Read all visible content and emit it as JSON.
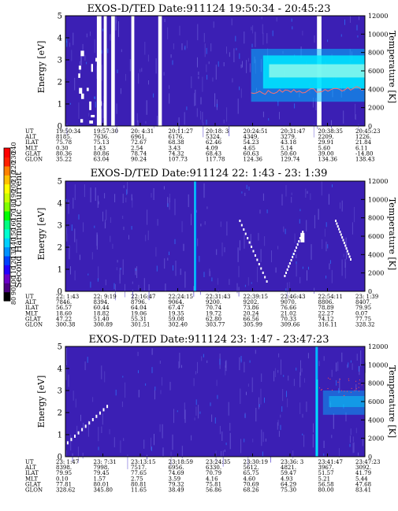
{
  "chart_data": [
    {
      "type": "heatmap",
      "title": "EXOS-D/TED   Date:911124  19:50:34 - 20:45:23",
      "ylabel": "Energy [eV]",
      "y2label": "Temperature [K]",
      "ylim": [
        0,
        5
      ],
      "y2lim": [
        0,
        12000
      ],
      "yticks": [
        "0",
        "1",
        "2",
        "3",
        "4",
        "5"
      ],
      "y2ticks": [
        "0",
        "2000",
        "4000",
        "6000",
        "8000",
        "10000",
        "12000"
      ],
      "table_rows": [
        {
          "label": "UT",
          "values": [
            "19:50:34",
            "19:57:30",
            "20: 4:31",
            "20:11:27",
            "20:18: 3",
            "20:24:51",
            "20:31:47",
            "20:38:35",
            "20:45:23"
          ]
        },
        {
          "label": "ALT",
          "values": [
            "8185.",
            "7636.",
            "6961.",
            "6176.",
            "5324.",
            "4349.",
            "3279.",
            "2209.",
            "1226."
          ]
        },
        {
          "label": "ILAT",
          "values": [
            "75.78",
            "75.13",
            "72.67",
            "68.38",
            "62.46",
            "54.23",
            "43.18",
            "29.91",
            "21.84"
          ]
        },
        {
          "label": "MLT",
          "values": [
            "0.30",
            "1.43",
            "2.54",
            "3.43",
            "4.09",
            "4.65",
            "5.14",
            "5.60",
            "6.11"
          ]
        },
        {
          "label": "GLAT",
          "values": [
            "80.36",
            "80.86",
            "78.74",
            "74.32",
            "68.43",
            "60.63",
            "50.60",
            "39.00",
            "-14.80"
          ]
        },
        {
          "label": "GLON",
          "values": [
            "35.22",
            "63.04",
            "90.24",
            "107.73",
            "117.78",
            "124.36",
            "129.74",
            "134.36",
            "138.43"
          ]
        }
      ]
    },
    {
      "type": "heatmap",
      "title": "EXOS-D/TED   Date:911124  22: 1:43 - 23: 1:39",
      "ylabel": "Energy [eV]",
      "y2label": "Temperature [K]",
      "ylim": [
        0,
        5
      ],
      "y2lim": [
        0,
        12000
      ],
      "yticks": [
        "0",
        "1",
        "2",
        "3",
        "4",
        "5"
      ],
      "y2ticks": [
        "0",
        "2000",
        "4000",
        "6000",
        "8000",
        "10000",
        "12000"
      ],
      "table_rows": [
        {
          "label": "UT",
          "values": [
            "22: 1:43",
            "22: 9:19",
            "22:16:47",
            "22:24:15",
            "22:31:43",
            "22:39:15",
            "22:46:43",
            "22:54:11",
            "23: 1:39"
          ]
        },
        {
          "label": "ALT",
          "values": [
            "7846.",
            "8394.",
            "8796.",
            "9064.",
            "9200.",
            "9202.",
            "9070.",
            "8806.",
            "8407."
          ]
        },
        {
          "label": "ILAT",
          "values": [
            "56.57",
            "60.44",
            "64.04",
            "67.47",
            "70.74",
            "73.86",
            "76.66",
            "78.89",
            "79.95"
          ]
        },
        {
          "label": "MLT",
          "values": [
            "18.60",
            "18.82",
            "19.06",
            "19.35",
            "19.72",
            "20.24",
            "21.02",
            "22.27",
            "0.07"
          ]
        },
        {
          "label": "GLAT",
          "values": [
            "47.22",
            "51.40",
            "55.31",
            "59.08",
            "62.80",
            "66.56",
            "70.33",
            "74.12",
            "77.75"
          ]
        },
        {
          "label": "GLON",
          "values": [
            "300.38",
            "300.89",
            "301.51",
            "302.40",
            "303.77",
            "305.99",
            "309.66",
            "316.11",
            "328.32"
          ]
        }
      ]
    },
    {
      "type": "heatmap",
      "title": "EXOS-D/TED   Date:911124  23: 1:47 - 23:47:23",
      "ylabel": "Energy [eV]",
      "y2label": "Temperature [K]",
      "ylim": [
        0,
        5
      ],
      "y2lim": [
        0,
        12000
      ],
      "yticks": [
        "0",
        "1",
        "2",
        "3",
        "4",
        "5"
      ],
      "y2ticks": [
        "0",
        "2000",
        "4000",
        "6000",
        "8000",
        "10000",
        "12000"
      ],
      "table_rows": [
        {
          "label": "UT",
          "values": [
            "23: 1:47",
            "23: 7:31",
            "23:13:15",
            "23:18:59",
            "23:24:35",
            "23:30:19",
            "23:36: 3",
            "23:41:47",
            "23:47:23"
          ]
        },
        {
          "label": "ALT",
          "values": [
            "8398.",
            "7998.",
            "7517.",
            "6956.",
            "6330.",
            "5612.",
            "4821.",
            "3967.",
            "3092."
          ]
        },
        {
          "label": "ILAT",
          "values": [
            "79.95",
            "79.45",
            "77.65",
            "74.69",
            "70.79",
            "65.75",
            "59.47",
            "51.57",
            "41.79"
          ]
        },
        {
          "label": "MLT",
          "values": [
            "0.10",
            "1.57",
            "2.75",
            "3.59",
            "4.16",
            "4.60",
            "4.93",
            "5.21",
            "5.44"
          ]
        },
        {
          "label": "GLAT",
          "values": [
            "77.81",
            "80.01",
            "80.81",
            "79.32",
            "75.81",
            "70.69",
            "64.29",
            "56.58",
            "47.68"
          ]
        },
        {
          "label": "GLON",
          "values": [
            "328.62",
            "345.80",
            "11.65",
            "38.49",
            "56.86",
            "68.26",
            "75.30",
            "80.00",
            "83.41"
          ]
        }
      ]
    }
  ],
  "colorbar": {
    "label": "Second Harmonic Current",
    "ticks": [
      "80",
      "90",
      "100",
      "110",
      "120",
      "130",
      "140",
      "150",
      "160",
      "170",
      "180",
      "190",
      "200",
      "210",
      "220",
      "230",
      "240"
    ],
    "colors": [
      "#000000",
      "#4b0082",
      "#6a00c8",
      "#2200ff",
      "#0040ff",
      "#0090ff",
      "#00d0ff",
      "#00ffd0",
      "#00ff80",
      "#00ff00",
      "#80ff00",
      "#c8ff00",
      "#ffff00",
      "#ffc000",
      "#ff8000",
      "#ff2000",
      "#ff0000"
    ]
  },
  "colors": {
    "background": "#3b1fb4",
    "streak": "#6a5cd6",
    "hot": "#00e8ff",
    "warm": "#00b8ff",
    "temperature_line": "#ff7070"
  }
}
